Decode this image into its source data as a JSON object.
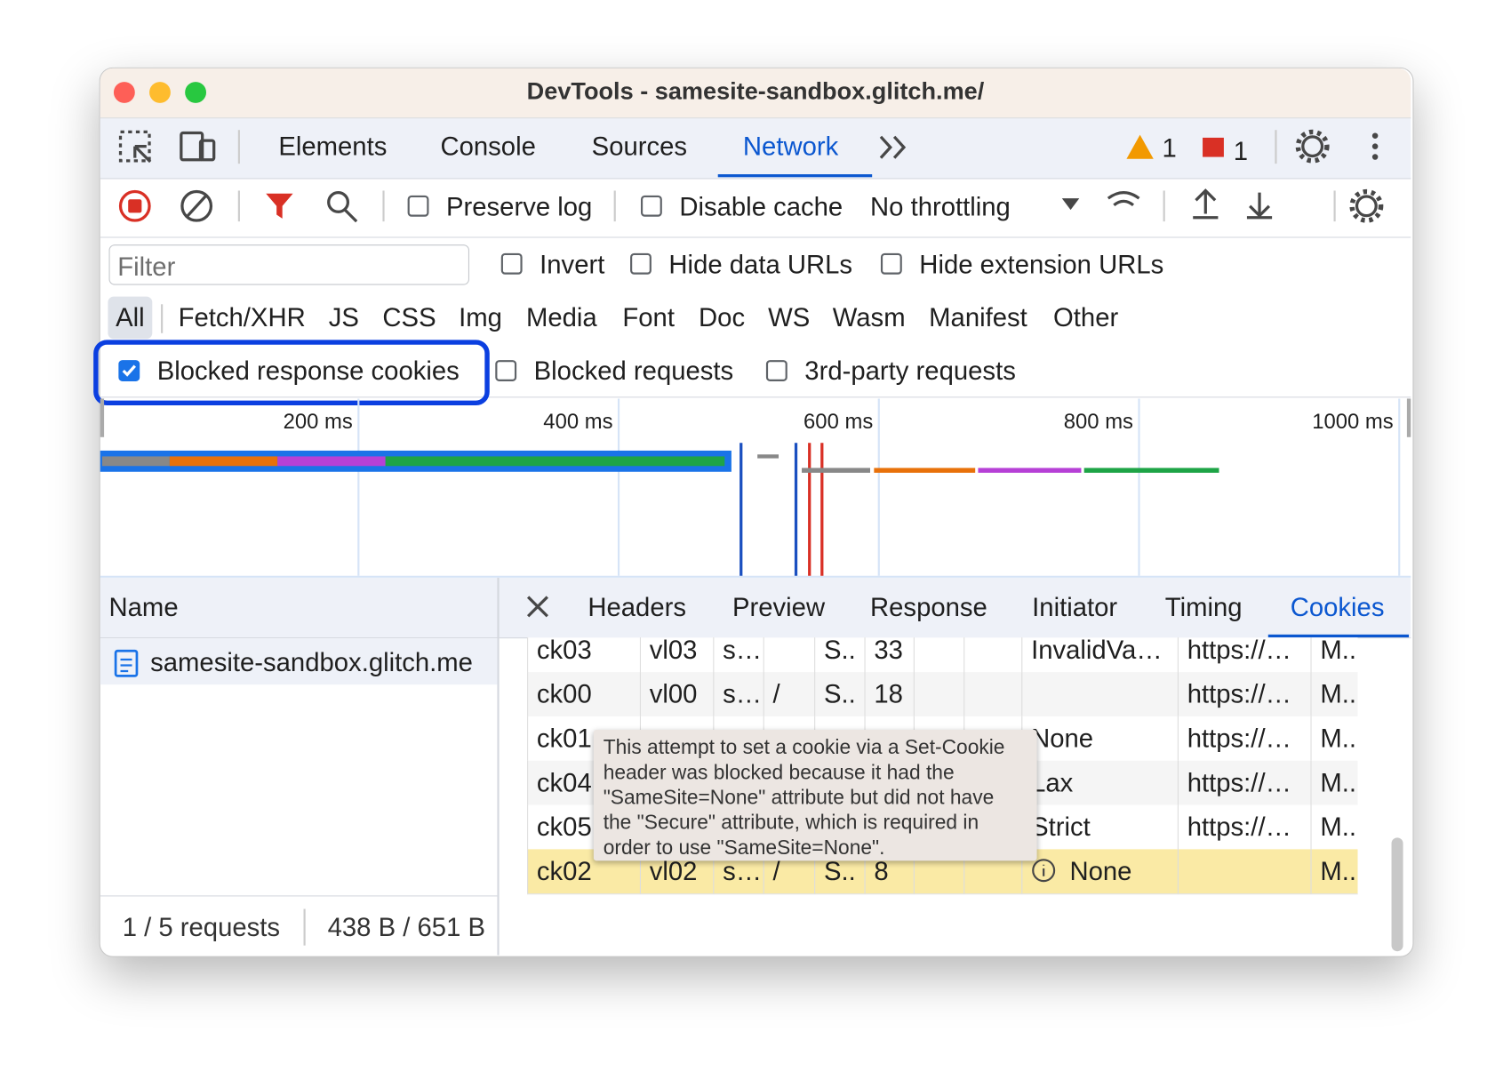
{
  "window": {
    "title": "DevTools - samesite-sandbox.glitch.me/"
  },
  "tabs": {
    "items": [
      "Elements",
      "Console",
      "Sources",
      "Network"
    ],
    "active": 3
  },
  "issues": {
    "warnings": "1",
    "errors": "1"
  },
  "toolbar": {
    "preserve_log": "Preserve log",
    "disable_cache": "Disable cache",
    "throttling": "No throttling"
  },
  "filter": {
    "placeholder": "Filter",
    "options": [
      "Invert",
      "Hide data URLs",
      "Hide extension URLs"
    ]
  },
  "types": {
    "items": [
      "All",
      "Fetch/XHR",
      "JS",
      "CSS",
      "Img",
      "Media",
      "Font",
      "Doc",
      "WS",
      "Wasm",
      "Manifest",
      "Other"
    ],
    "active": 0
  },
  "extra_filters": [
    {
      "label": "Blocked response cookies",
      "checked": true
    },
    {
      "label": "Blocked requests",
      "checked": false
    },
    {
      "label": "3rd-party requests",
      "checked": false
    }
  ],
  "timeline": {
    "ticks": [
      "200 ms",
      "400 ms",
      "600 ms",
      "800 ms",
      "1000 ms"
    ]
  },
  "requests": {
    "header": "Name",
    "items": [
      "samesite-sandbox.glitch.me"
    ]
  },
  "details": {
    "tabs": [
      "Headers",
      "Preview",
      "Response",
      "Initiator",
      "Timing",
      "Cookies"
    ],
    "active": 5
  },
  "cookies": {
    "rows": [
      [
        "ck03",
        "vl03",
        "s…",
        null,
        "S..",
        "33",
        null,
        null,
        "InvalidVa…",
        "https://…",
        "M.."
      ],
      [
        "ck00",
        "vl00",
        "s…",
        "/",
        "S..",
        "18",
        null,
        null,
        null,
        "https://…",
        "M.."
      ],
      [
        "ck01",
        null,
        null,
        null,
        null,
        null,
        null,
        null,
        "None",
        "https://…",
        "M.."
      ],
      [
        "ck04",
        null,
        null,
        null,
        null,
        null,
        null,
        null,
        "Lax",
        "https://…",
        "M.."
      ],
      [
        "ck05",
        null,
        null,
        null,
        null,
        null,
        null,
        null,
        "Strict",
        "https://…",
        "M.."
      ],
      [
        "ck02",
        "vl02",
        "s…",
        "/",
        "S..",
        "8",
        null,
        null,
        "None",
        null,
        "M.."
      ]
    ],
    "highlighted": 5
  },
  "tooltip": {
    "lines": [
      "This attempt to set a cookie via a Set-Cookie",
      "header was blocked because it had the",
      "\"SameSite=None\" attribute but did not have",
      "the \"Secure\" attribute, which is required in",
      "order to use \"SameSite=None\"."
    ]
  },
  "status": {
    "requests": "1 / 5 requests",
    "transfer": "438 B / 651 B"
  }
}
